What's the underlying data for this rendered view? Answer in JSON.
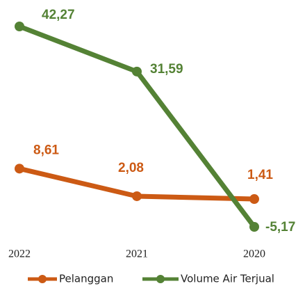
{
  "chart_data": {
    "type": "line",
    "categories": [
      "2022",
      "2021",
      "2020"
    ],
    "series": [
      {
        "name": "Pelanggan",
        "color": "#cc5a14",
        "values": [
          8.61,
          2.08,
          1.41
        ],
        "value_labels": [
          "8,61",
          "2,08",
          "1,41"
        ]
      },
      {
        "name": "Volume Air Terjual",
        "color": "#548235",
        "values": [
          42.27,
          31.59,
          -5.17
        ],
        "value_labels": [
          "42,27",
          "31,59",
          "-5,17"
        ]
      }
    ],
    "legend": "bottom"
  }
}
